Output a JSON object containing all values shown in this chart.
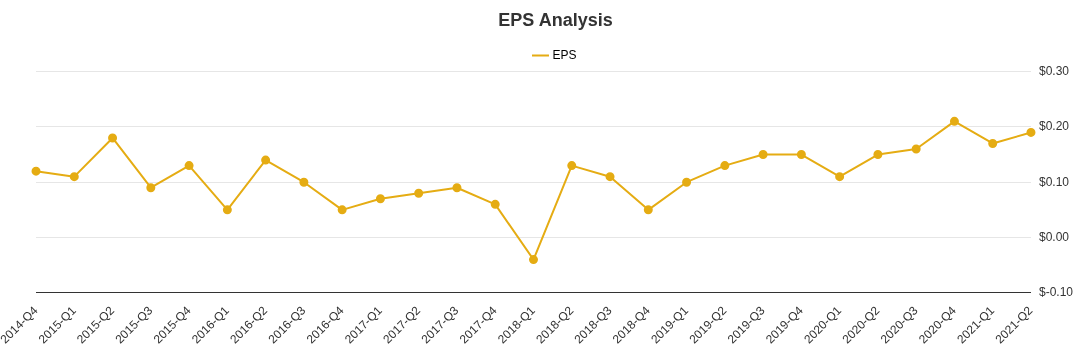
{
  "chart_data": {
    "type": "line",
    "title": "EPS Analysis",
    "categories": [
      "2014-Q4",
      "2015-Q1",
      "2015-Q2",
      "2015-Q3",
      "2015-Q4",
      "2016-Q1",
      "2016-Q2",
      "2016-Q3",
      "2016-Q4",
      "2017-Q1",
      "2017-Q2",
      "2017-Q3",
      "2017-Q4",
      "2018-Q1",
      "2018-Q2",
      "2018-Q3",
      "2018-Q4",
      "2019-Q1",
      "2019-Q2",
      "2019-Q3",
      "2019-Q4",
      "2020-Q1",
      "2020-Q2",
      "2020-Q3",
      "2020-Q4",
      "2021-Q1",
      "2021-Q2"
    ],
    "series": [
      {
        "name": "EPS",
        "color": "#e5ac13",
        "values": [
          0.12,
          0.11,
          0.18,
          0.09,
          0.13,
          0.05,
          0.14,
          0.1,
          0.05,
          0.07,
          0.08,
          0.09,
          0.06,
          -0.04,
          0.13,
          0.11,
          0.05,
          0.1,
          0.13,
          0.15,
          0.15,
          0.11,
          0.15,
          0.16,
          0.21,
          0.17,
          0.19
        ]
      }
    ],
    "ylim": [
      -0.1,
      0.3
    ],
    "yticks": [
      {
        "value": -0.1,
        "label": "$-0.10"
      },
      {
        "value": 0,
        "label": "$0.00"
      },
      {
        "value": 0.1,
        "label": "$0.10"
      },
      {
        "value": 0.2,
        "label": "$0.20"
      },
      {
        "value": 0.3,
        "label": "$0.30"
      }
    ],
    "grid": "y",
    "legend": "top",
    "marker": "circle",
    "line_style": "solid"
  }
}
